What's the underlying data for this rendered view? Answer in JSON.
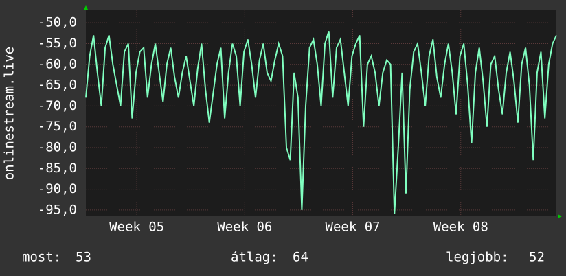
{
  "chart_data": {
    "type": "line",
    "ylabel": "onlinestream.live",
    "color": "#80ffc0",
    "grid": true,
    "xlim": [
      0,
      30.5
    ],
    "ylim": [
      -96.5,
      -47
    ],
    "xticks": [
      {
        "value": 3.3,
        "label": "Week 05"
      },
      {
        "value": 10.3,
        "label": "Week 06"
      },
      {
        "value": 17.3,
        "label": "Week 07"
      },
      {
        "value": 24.3,
        "label": "Week 08"
      }
    ],
    "yticks": [
      {
        "value": -50,
        "label": "-50,0"
      },
      {
        "value": -55,
        "label": "-55,0"
      },
      {
        "value": -60,
        "label": "-60,0"
      },
      {
        "value": -65,
        "label": "-65,0"
      },
      {
        "value": -70,
        "label": "-70,0"
      },
      {
        "value": -75,
        "label": "-75,0"
      },
      {
        "value": -80,
        "label": "-80,0"
      },
      {
        "value": -85,
        "label": "-85,0"
      },
      {
        "value": -90,
        "label": "-90,0"
      },
      {
        "value": -95,
        "label": "-95,0"
      }
    ],
    "x": [
      0,
      0.25,
      0.5,
      0.75,
      1,
      1.25,
      1.5,
      1.75,
      2,
      2.25,
      2.5,
      2.75,
      3,
      3.25,
      3.5,
      3.75,
      4,
      4.25,
      4.5,
      4.75,
      5,
      5.25,
      5.5,
      5.75,
      6,
      6.25,
      6.5,
      6.75,
      7,
      7.25,
      7.5,
      7.75,
      8,
      8.25,
      8.5,
      8.75,
      9,
      9.25,
      9.5,
      9.75,
      10,
      10.25,
      10.5,
      10.75,
      11,
      11.25,
      11.5,
      11.75,
      12,
      12.25,
      12.5,
      12.75,
      13,
      13.25,
      13.5,
      13.75,
      14,
      14.25,
      14.5,
      14.75,
      15,
      15.25,
      15.5,
      15.75,
      16,
      16.25,
      16.5,
      16.75,
      17,
      17.25,
      17.5,
      17.75,
      18,
      18.25,
      18.5,
      18.75,
      19,
      19.25,
      19.5,
      19.75,
      20,
      20.25,
      20.5,
      20.75,
      21,
      21.25,
      21.5,
      21.75,
      22,
      22.25,
      22.5,
      22.75,
      23,
      23.25,
      23.5,
      23.75,
      24,
      24.25,
      24.5,
      24.75,
      25,
      25.25,
      25.5,
      25.75,
      26,
      26.25,
      26.5,
      26.75,
      27,
      27.25,
      27.5,
      27.75,
      28,
      28.25,
      28.5,
      28.75,
      29,
      29.25,
      29.5,
      29.75,
      30,
      30.25,
      30.5
    ],
    "values": [
      -68,
      -58,
      -53,
      -62,
      -70,
      -56,
      -53,
      -60,
      -65,
      -70,
      -57,
      -55,
      -73,
      -62,
      -57,
      -56,
      -68,
      -60,
      -55,
      -62,
      -69,
      -60,
      -56,
      -63,
      -68,
      -62,
      -58,
      -64,
      -70,
      -61,
      -55,
      -66,
      -74,
      -67,
      -60,
      -56,
      -73,
      -62,
      -55,
      -58,
      -70,
      -57,
      -54,
      -60,
      -68,
      -59,
      -55,
      -62,
      -64,
      -59,
      -55,
      -58,
      -80,
      -83,
      -62,
      -68,
      -95,
      -70,
      -56,
      -54,
      -60,
      -70,
      -55,
      -52,
      -68,
      -56,
      -54,
      -62,
      -70,
      -58,
      -55,
      -53,
      -75,
      -60,
      -58,
      -62,
      -70,
      -62,
      -59,
      -60,
      -96,
      -80,
      -62,
      -91,
      -66,
      -57,
      -55,
      -62,
      -70,
      -58,
      -54,
      -63,
      -68,
      -60,
      -55,
      -62,
      -72,
      -58,
      -55,
      -65,
      -79,
      -62,
      -56,
      -64,
      -75,
      -60,
      -58,
      -66,
      -72,
      -62,
      -57,
      -64,
      -74,
      -60,
      -56,
      -65,
      -83,
      -62,
      -57,
      -73,
      -60,
      -55,
      -53
    ]
  },
  "stats": [
    {
      "label": "most:",
      "value": 53
    },
    {
      "label": "átlag:",
      "value": 64
    },
    {
      "label": "legjobb:",
      "value": 52
    }
  ]
}
